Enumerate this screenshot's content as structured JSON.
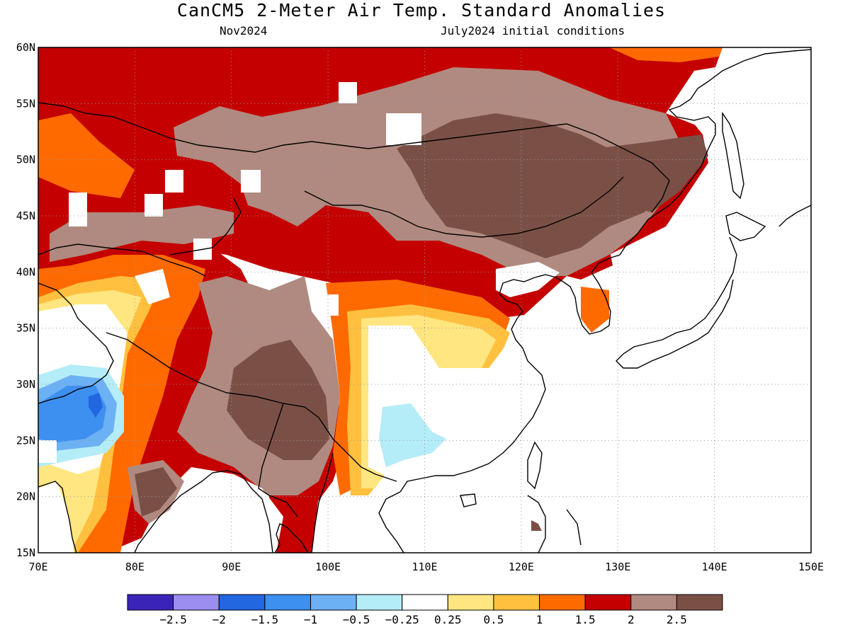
{
  "header": {
    "title": "CanCM5 2-Meter Air Temp. Standard Anomalies",
    "valid_month": "Nov2024",
    "initial_conditions": "July2024 initial conditions"
  },
  "map": {
    "lon_range": [
      70,
      150
    ],
    "lat_range": [
      15,
      60
    ],
    "x_ticks": [
      "70E",
      "80E",
      "90E",
      "100E",
      "110E",
      "120E",
      "130E",
      "140E",
      "150E"
    ],
    "y_ticks": [
      "60N",
      "55N",
      "50N",
      "45N",
      "40N",
      "35N",
      "30N",
      "25N",
      "20N",
      "15N"
    ],
    "gridlines": true,
    "legend_placement": "bottom"
  },
  "colorbar": {
    "labels": [
      "-2.5",
      "-2",
      "-1.5",
      "-1",
      "-0.5",
      "-0.25",
      "0.25",
      "0.5",
      "1",
      "1.5",
      "2",
      "2.5"
    ],
    "colors": [
      "#3a24b8",
      "#9b8ef0",
      "#2266e0",
      "#3d8ff0",
      "#6cb1f4",
      "#b4ecf8",
      "#ffffff",
      "#ffe680",
      "#ffc040",
      "#ff6a00",
      "#c40000",
      "#b08a80",
      "#7a5046"
    ]
  }
}
